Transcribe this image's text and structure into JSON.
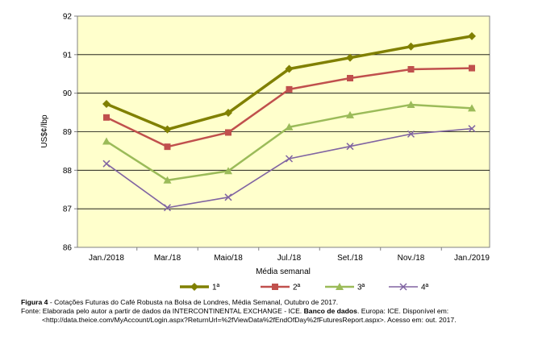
{
  "chart_data": {
    "type": "line",
    "title": "",
    "xlabel": "Média semanal",
    "ylabel": "US$¢/lbp",
    "ylim": [
      86,
      92
    ],
    "yticks": [
      86,
      87,
      88,
      89,
      90,
      91,
      92
    ],
    "grid": true,
    "legend_position": "bottom",
    "plot_background": "#FFFFCC",
    "categories": [
      "Jan./2018",
      "Mar./18",
      "Maio/18",
      "Jul./18",
      "Set./18",
      "Nov./18",
      "Jan./2019"
    ],
    "series": [
      {
        "name": "1ª",
        "color": "#808000",
        "marker": "diamond",
        "values": [
          89.72,
          89.06,
          89.49,
          90.63,
          90.92,
          91.21,
          91.48
        ]
      },
      {
        "name": "2ª",
        "color": "#C0504D",
        "marker": "square",
        "values": [
          89.37,
          88.61,
          88.98,
          90.1,
          90.39,
          90.62,
          90.65
        ]
      },
      {
        "name": "3ª",
        "color": "#9BBB59",
        "marker": "triangle",
        "values": [
          88.75,
          87.74,
          87.98,
          89.12,
          89.43,
          89.7,
          89.61
        ]
      },
      {
        "name": "4ª",
        "color": "#8064A2",
        "marker": "x",
        "values": [
          88.17,
          87.03,
          87.3,
          88.3,
          88.62,
          88.94,
          89.08
        ]
      }
    ]
  },
  "caption": {
    "figure_label": "Figura 4",
    "figure_text": " - Cotações Futuras do Café Robusta na Bolsa de Londres, Média Semanal, Outubro de 2017.",
    "source_prefix": "Fonte: Elaborada pelo autor a partir de dados da INTERCONTINENTAL EXCHANGE - ICE. ",
    "source_bold": "Banco de dados",
    "source_rest": ". Europa: ICE. Disponível em: <http://data.theice.com/MyAccount/Login.aspx?ReturnUrl=%2fViewData%2fEndOfDay%2fFuturesReport.aspx>. Acesso em: out. 2017."
  }
}
